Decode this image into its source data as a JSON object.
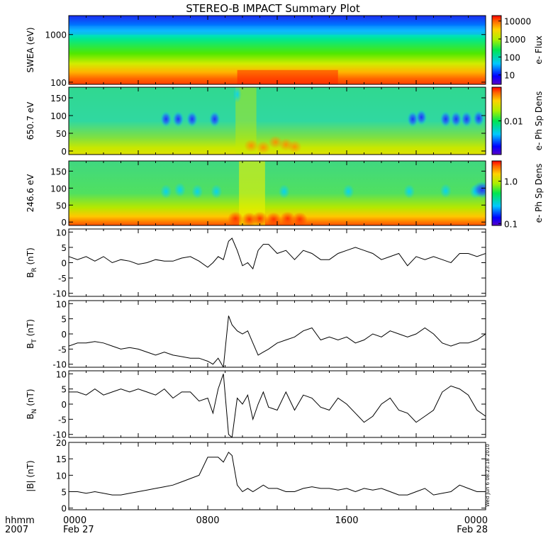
{
  "chart_data": {
    "type": "line",
    "title": "STEREO-B IMPACT Summary Plot",
    "x_range_hours": [
      0,
      24
    ],
    "time_ticks": [
      {
        "hour": 0,
        "label": "0000",
        "sub": "Feb 27"
      },
      {
        "hour": 8,
        "label": "0800",
        "sub": ""
      },
      {
        "hour": 16,
        "label": "1600",
        "sub": ""
      },
      {
        "hour": 24,
        "label": "0000",
        "sub": "Feb 28"
      }
    ],
    "time_axis_label": {
      "line1": "hhmm",
      "line2": "2007"
    },
    "stamp": "Wed Jun  6 08:23:18 2010",
    "spectrograms": [
      {
        "ylabel": "SWEA (eV)",
        "scale": "log",
        "y_ticks": [
          {
            "value": 100,
            "label": "100"
          },
          {
            "value": 1000,
            "label": "1000"
          }
        ],
        "yrange": [
          90,
          2500
        ],
        "colorbar": {
          "label": "e- Flux",
          "scale": "log",
          "range": [
            3,
            20000
          ],
          "ticks": [
            {
              "value": 10,
              "label": "10"
            },
            {
              "value": 100,
              "label": "100"
            },
            {
              "value": 1000,
              "label": "1000"
            },
            {
              "value": 10000,
              "label": "10000"
            }
          ]
        }
      },
      {
        "ylabel": "650.7 eV",
        "scale": "linear",
        "y_ticks": [
          {
            "value": 0,
            "label": "0"
          },
          {
            "value": 50,
            "label": "50"
          },
          {
            "value": 100,
            "label": "100"
          },
          {
            "value": 150,
            "label": "150"
          }
        ],
        "yrange": [
          -10,
          180
        ],
        "colorbar": {
          "label": "e- Ph Sp Dens",
          "scale": "log",
          "range": [
            0.002,
            0.05
          ],
          "ticks": [
            {
              "value": 0.01,
              "label": "0.01"
            }
          ]
        }
      },
      {
        "ylabel": "246.6 eV",
        "scale": "linear",
        "y_ticks": [
          {
            "value": 0,
            "label": "0"
          },
          {
            "value": 50,
            "label": "50"
          },
          {
            "value": 100,
            "label": "100"
          },
          {
            "value": 150,
            "label": "150"
          }
        ],
        "yrange": [
          -10,
          180
        ],
        "colorbar": {
          "label": "e- Ph Sp Dens",
          "scale": "log",
          "range": [
            0.09,
            3
          ],
          "ticks": [
            {
              "value": 0.1,
              "label": "0.1"
            },
            {
              "value": 1,
              "label": "1.0"
            }
          ]
        }
      }
    ],
    "series": [
      {
        "ylabel_main": "B",
        "ylabel_sub": "R",
        "ylabel_unit": "(nT)",
        "ylim": [
          -11,
          11
        ],
        "y_ticks": [
          {
            "value": -10,
            "label": "-10"
          },
          {
            "value": -5,
            "label": "-5"
          },
          {
            "value": 0,
            "label": "0"
          },
          {
            "value": 5,
            "label": "5"
          },
          {
            "value": 10,
            "label": "10"
          }
        ],
        "x": [
          0,
          0.5,
          1,
          1.5,
          2,
          2.5,
          3,
          3.5,
          4,
          4.5,
          5,
          5.5,
          6,
          6.5,
          7,
          7.5,
          8,
          8.3,
          8.6,
          8.9,
          9.2,
          9.4,
          9.7,
          10,
          10.3,
          10.6,
          10.9,
          11.2,
          11.5,
          12,
          12.5,
          13,
          13.5,
          14,
          14.5,
          15,
          15.5,
          16,
          16.5,
          17,
          17.5,
          18,
          18.5,
          19,
          19.5,
          20,
          20.5,
          21,
          21.5,
          22,
          22.5,
          23,
          23.5,
          24
        ],
        "y": [
          2,
          1,
          2,
          0.5,
          2,
          0,
          1,
          0.5,
          -0.5,
          0,
          1,
          0.5,
          0.5,
          1.5,
          2,
          0.5,
          -1.5,
          0,
          2,
          1,
          7,
          8,
          4,
          -1,
          0,
          -2,
          4,
          6,
          6,
          3,
          4,
          1,
          4,
          3,
          1,
          1,
          3,
          4,
          5,
          4,
          3,
          1,
          2,
          3,
          -1,
          2,
          1,
          2,
          1,
          0,
          3,
          3,
          2,
          3
        ]
      },
      {
        "ylabel_main": "B",
        "ylabel_sub": "T",
        "ylabel_unit": "(nT)",
        "ylim": [
          -11,
          11
        ],
        "y_ticks": [
          {
            "value": -10,
            "label": "-10"
          },
          {
            "value": -5,
            "label": "-5"
          },
          {
            "value": 0,
            "label": "0"
          },
          {
            "value": 5,
            "label": "5"
          },
          {
            "value": 10,
            "label": "10"
          }
        ],
        "x": [
          0,
          0.5,
          1,
          1.5,
          2,
          2.5,
          3,
          3.5,
          4,
          4.5,
          5,
          5.5,
          6,
          6.5,
          7,
          7.5,
          8,
          8.3,
          8.6,
          8.9,
          9.2,
          9.4,
          9.7,
          10,
          10.3,
          10.6,
          10.9,
          11.2,
          11.5,
          12,
          12.5,
          13,
          13.5,
          14,
          14.5,
          15,
          15.5,
          16,
          16.5,
          17,
          17.5,
          18,
          18.5,
          19,
          19.5,
          20,
          20.5,
          21,
          21.5,
          22,
          22.5,
          23,
          23.5,
          24
        ],
        "y": [
          -4,
          -3,
          -3,
          -2.5,
          -3,
          -4,
          -5,
          -4.5,
          -5,
          -6,
          -7,
          -6,
          -7,
          -7.5,
          -8,
          -8,
          -9,
          -10,
          -8,
          -11,
          6,
          3,
          1,
          0,
          1,
          -3,
          -7,
          -6,
          -5,
          -3,
          -2,
          -1,
          1,
          2,
          -2,
          -1,
          -2,
          -1,
          -3,
          -2,
          0,
          -1,
          1,
          0,
          -1,
          0,
          2,
          0,
          -3,
          -4,
          -3,
          -3,
          -2,
          0
        ]
      },
      {
        "ylabel_main": "B",
        "ylabel_sub": "N",
        "ylabel_unit": "(nT)",
        "ylim": [
          -11,
          11
        ],
        "y_ticks": [
          {
            "value": -10,
            "label": "-10"
          },
          {
            "value": -5,
            "label": "-5"
          },
          {
            "value": 0,
            "label": "0"
          },
          {
            "value": 5,
            "label": "5"
          },
          {
            "value": 10,
            "label": "10"
          }
        ],
        "x": [
          0,
          0.5,
          1,
          1.5,
          2,
          2.5,
          3,
          3.5,
          4,
          4.5,
          5,
          5.5,
          6,
          6.5,
          7,
          7.5,
          8,
          8.3,
          8.6,
          8.9,
          9.2,
          9.4,
          9.7,
          10,
          10.3,
          10.6,
          10.9,
          11.2,
          11.5,
          12,
          12.5,
          13,
          13.5,
          14,
          14.5,
          15,
          15.5,
          16,
          16.5,
          17,
          17.5,
          18,
          18.5,
          19,
          19.5,
          20,
          20.5,
          21,
          21.5,
          22,
          22.5,
          23,
          23.5,
          24
        ],
        "y": [
          4,
          4,
          3,
          5,
          3,
          4,
          5,
          4,
          5,
          4,
          3,
          5,
          2,
          4,
          4,
          1,
          2,
          -3,
          5,
          10,
          -10,
          -11,
          2,
          0,
          3,
          -5,
          0,
          4,
          -1,
          -2,
          4,
          -2,
          3,
          2,
          -1,
          -2,
          2,
          0,
          -3,
          -6,
          -4,
          0,
          2,
          -2,
          -3,
          -6,
          -4,
          -2,
          4,
          6,
          5,
          3,
          -2,
          -4
        ]
      },
      {
        "ylabel_main": "|B|",
        "ylabel_sub": "",
        "ylabel_unit": "(nT)",
        "ylim": [
          -0.5,
          20
        ],
        "y_ticks": [
          {
            "value": 0,
            "label": "0"
          },
          {
            "value": 5,
            "label": "5"
          },
          {
            "value": 10,
            "label": "10"
          },
          {
            "value": 15,
            "label": "15"
          },
          {
            "value": 20,
            "label": "20"
          }
        ],
        "x": [
          0,
          0.5,
          1,
          1.5,
          2,
          2.5,
          3,
          3.5,
          4,
          4.5,
          5,
          5.5,
          6,
          6.5,
          7,
          7.5,
          8,
          8.3,
          8.6,
          8.9,
          9.2,
          9.4,
          9.7,
          10,
          10.3,
          10.6,
          10.9,
          11.2,
          11.5,
          12,
          12.5,
          13,
          13.5,
          14,
          14.5,
          15,
          15.5,
          16,
          16.5,
          17,
          17.5,
          18,
          18.5,
          19,
          19.5,
          20,
          20.5,
          21,
          21.5,
          22,
          22.5,
          23,
          23.5,
          24
        ],
        "y": [
          5,
          5,
          4.5,
          5,
          4.5,
          4,
          4,
          4.5,
          5,
          5.5,
          6,
          6.5,
          7,
          8,
          9,
          10,
          15.5,
          15.5,
          15.5,
          14,
          17,
          16,
          7,
          5,
          6,
          5,
          6,
          7,
          6,
          6,
          5,
          5,
          6,
          6.5,
          6,
          6,
          5.5,
          6,
          5,
          6,
          5.5,
          6,
          5,
          4,
          4,
          5,
          6,
          4,
          4.5,
          5,
          7,
          6,
          5,
          5
        ]
      }
    ]
  }
}
